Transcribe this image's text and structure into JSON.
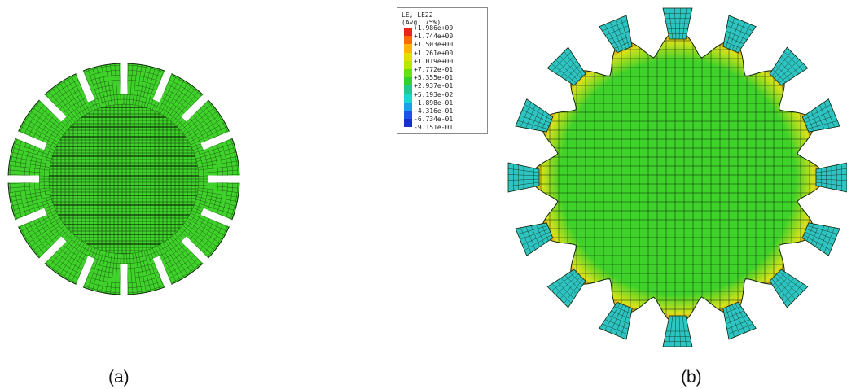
{
  "captions": {
    "a": "(a)",
    "b": "(b)"
  },
  "legend": {
    "title_line1": "LE, LE22",
    "title_line2": "(Avg: 75%)",
    "values": [
      "+1.986e+00",
      "+1.744e+00",
      "+1.503e+00",
      "+1.261e+00",
      "+1.019e+00",
      "+7.772e-01",
      "+5.355e-01",
      "+2.937e-01",
      "+5.193e-02",
      "-1.898e-01",
      "-4.316e-01",
      "-6.734e-01",
      "-9.151e-01"
    ],
    "colors": [
      "#e8241b",
      "#ff6a00",
      "#ffb300",
      "#e1e000",
      "#b8e800",
      "#66e010",
      "#33d22f",
      "#20c890",
      "#17d7d0",
      "#1a9fe8",
      "#1f53e8",
      "#1530cc"
    ]
  },
  "colors": {
    "mesh_green": "#3fd22a",
    "mesh_line": "#0f2a0a",
    "tooth_cyan": "#2ec4c4",
    "hot_red": "#e8441c",
    "warm_yellow": "#d9e21a"
  }
}
